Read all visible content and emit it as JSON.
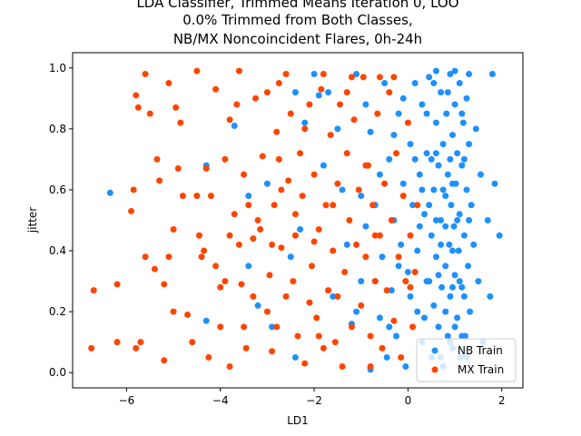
{
  "chart_data": {
    "type": "scatter",
    "title_lines": [
      "LDA Classifier, Trimmed Means Iteration 0, LOO",
      "0.0% Trimmed from Both Classes,",
      "NB/MX Noncoincident Flares, 0h-24h"
    ],
    "xlabel": "LD1",
    "ylabel": "jitter",
    "xlim": [
      -7.15,
      2.45
    ],
    "ylim": [
      -0.05,
      1.05
    ],
    "xticks": [
      -6,
      -4,
      -2,
      0,
      2
    ],
    "xtick_labels": [
      "−6",
      "−4",
      "−2",
      "0",
      "2"
    ],
    "yticks": [
      0.0,
      0.2,
      0.4,
      0.6,
      0.8,
      1.0
    ],
    "ytick_labels": [
      "0.0",
      "0.2",
      "0.4",
      "0.6",
      "0.8",
      "1.0"
    ],
    "grid": false,
    "legend_position": "lower-right",
    "series": [
      {
        "name": "NB Train",
        "color": "#1e90ff",
        "points": [
          [
            -6.35,
            0.59
          ],
          [
            -4.3,
            0.17
          ],
          [
            -4.3,
            0.68
          ],
          [
            -3.7,
            0.81
          ],
          [
            -3.4,
            0.58
          ],
          [
            -3.4,
            0.35
          ],
          [
            -3.2,
            0.22
          ],
          [
            -3.0,
            0.62
          ],
          [
            -2.9,
            0.15
          ],
          [
            -2.5,
            0.38
          ],
          [
            -2.4,
            0.92
          ],
          [
            -2.4,
            0.05
          ],
          [
            -2.3,
            0.47
          ],
          [
            -2.2,
            0.82
          ],
          [
            -2.0,
            0.98
          ],
          [
            -1.9,
            0.91
          ],
          [
            -1.8,
            0.68
          ],
          [
            -1.7,
            0.92
          ],
          [
            -1.6,
            0.25
          ],
          [
            -1.5,
            0.8
          ],
          [
            -1.4,
            0.6
          ],
          [
            -1.3,
            0.42
          ],
          [
            -1.2,
            0.16
          ],
          [
            -1.1,
            0.98
          ],
          [
            -1.0,
            0.3
          ],
          [
            -0.9,
            0.48
          ],
          [
            -0.8,
            0.79
          ],
          [
            -0.8,
            0.01
          ],
          [
            -0.7,
            0.55
          ],
          [
            -0.6,
            0.18
          ],
          [
            -0.55,
            0.38
          ],
          [
            -0.5,
            0.95
          ],
          [
            -0.45,
            0.05
          ],
          [
            -0.4,
            0.7
          ],
          [
            -0.35,
            0.27
          ],
          [
            -0.3,
            0.5
          ],
          [
            -0.25,
            0.12
          ],
          [
            -0.2,
            0.85
          ],
          [
            -0.15,
            0.42
          ],
          [
            -0.1,
            0.62
          ],
          [
            -0.05,
            0.02
          ],
          [
            0.0,
            0.33
          ],
          [
            0.05,
            0.75
          ],
          [
            0.1,
            0.55
          ],
          [
            0.15,
            0.95
          ],
          [
            0.2,
            0.2
          ],
          [
            0.2,
            0.4
          ],
          [
            0.25,
            0.65
          ],
          [
            0.3,
            0.88
          ],
          [
            0.3,
            0.1
          ],
          [
            0.35,
            0.52
          ],
          [
            0.4,
            0.3
          ],
          [
            0.4,
            0.72
          ],
          [
            0.45,
            0.97
          ],
          [
            0.5,
            0.45
          ],
          [
            0.5,
            0.05
          ],
          [
            0.55,
            0.6
          ],
          [
            0.55,
            0.22
          ],
          [
            0.6,
            0.82
          ],
          [
            0.6,
            0.38
          ],
          [
            0.65,
            0.68
          ],
          [
            0.65,
            0.15
          ],
          [
            0.7,
            0.92
          ],
          [
            0.7,
            0.5
          ],
          [
            0.72,
            0.28
          ],
          [
            0.75,
            0.75
          ],
          [
            0.75,
            0.02
          ],
          [
            0.8,
            0.58
          ],
          [
            0.8,
            0.35
          ],
          [
            0.82,
            0.85
          ],
          [
            0.85,
            0.12
          ],
          [
            0.85,
            0.65
          ],
          [
            0.88,
            0.42
          ],
          [
            0.9,
            0.98
          ],
          [
            0.9,
            0.25
          ],
          [
            0.92,
            0.55
          ],
          [
            0.95,
            0.78
          ],
          [
            0.95,
            0.08
          ],
          [
            0.98,
            0.48
          ],
          [
            1.0,
            0.32
          ],
          [
            1.0,
            0.88
          ],
          [
            1.02,
            0.62
          ],
          [
            1.05,
            0.18
          ],
          [
            1.05,
            0.72
          ],
          [
            1.08,
            0.4
          ],
          [
            1.1,
            0.95
          ],
          [
            1.1,
            0.52
          ],
          [
            1.12,
            0.05
          ],
          [
            1.15,
            0.68
          ],
          [
            1.15,
            0.28
          ],
          [
            1.18,
            0.82
          ],
          [
            1.2,
            0.45
          ],
          [
            1.22,
            0.12
          ],
          [
            1.25,
            0.6
          ],
          [
            1.25,
            0.9
          ],
          [
            1.28,
            0.35
          ],
          [
            1.3,
            0.75
          ],
          [
            1.32,
            0.2
          ],
          [
            1.35,
            0.55
          ],
          [
            1.4,
            0.42
          ],
          [
            1.45,
            0.8
          ],
          [
            1.5,
            0.3
          ],
          [
            1.55,
            0.65
          ],
          [
            1.6,
            0.1
          ],
          [
            1.7,
            0.5
          ],
          [
            1.75,
            0.25
          ],
          [
            1.8,
            0.98
          ],
          [
            1.85,
            0.62
          ],
          [
            1.95,
            0.45
          ],
          [
            0.3,
            0.6
          ],
          [
            0.45,
            0.3
          ],
          [
            0.6,
            0.5
          ],
          [
            0.8,
            0.2
          ],
          [
            0.95,
            0.4
          ],
          [
            1.1,
            0.3
          ],
          [
            0.7,
            0.42
          ],
          [
            0.9,
            0.7
          ],
          [
            1.3,
            0.5
          ],
          [
            0.4,
            0.85
          ],
          [
            0.55,
            0.95
          ],
          [
            0.75,
            0.6
          ],
          [
            1.0,
            0.15
          ],
          [
            1.2,
            0.25
          ],
          [
            0.65,
            0.32
          ],
          [
            0.85,
            0.92
          ],
          [
            1.15,
            0.85
          ],
          [
            0.5,
            0.7
          ],
          [
            0.35,
            0.18
          ],
          [
            0.95,
            0.62
          ],
          [
            1.05,
            0.5
          ],
          [
            0.25,
            0.48
          ],
          [
            0.15,
            0.7
          ],
          [
            0.05,
            0.25
          ],
          [
            -0.1,
            0.9
          ],
          [
            -0.2,
            0.35
          ],
          [
            -0.3,
            0.78
          ],
          [
            -0.4,
            0.15
          ],
          [
            -0.6,
            0.65
          ],
          [
            -0.7,
            0.3
          ],
          [
            -0.9,
            0.88
          ],
          [
            -1.0,
            0.58
          ],
          [
            -1.1,
            0.2
          ],
          [
            0.7,
            0.05
          ],
          [
            0.9,
            0.1
          ],
          [
            1.25,
            0.05
          ],
          [
            0.6,
            0.99
          ],
          [
            1.0,
            0.99
          ],
          [
            1.3,
            0.98
          ],
          [
            0.8,
            0.48
          ],
          [
            0.6,
            0.72
          ],
          [
            1.2,
            0.7
          ],
          [
            0.45,
            0.55
          ],
          [
            0.95,
            0.28
          ],
          [
            1.15,
            0.12
          ]
        ]
      },
      {
        "name": "MX Train",
        "color": "#ff4500",
        "points": [
          [
            -6.75,
            0.08
          ],
          [
            -6.7,
            0.27
          ],
          [
            -6.2,
            0.29
          ],
          [
            -6.2,
            0.1
          ],
          [
            -5.9,
            0.53
          ],
          [
            -5.85,
            0.6
          ],
          [
            -5.8,
            0.91
          ],
          [
            -5.75,
            0.87
          ],
          [
            -5.7,
            0.1
          ],
          [
            -5.6,
            0.38
          ],
          [
            -5.5,
            0.85
          ],
          [
            -5.4,
            0.34
          ],
          [
            -5.35,
            0.7
          ],
          [
            -5.3,
            0.63
          ],
          [
            -5.2,
            0.04
          ],
          [
            -5.1,
            0.95
          ],
          [
            -5.0,
            0.47
          ],
          [
            -5.0,
            0.2
          ],
          [
            -4.9,
            0.67
          ],
          [
            -4.85,
            0.82
          ],
          [
            -4.7,
            0.19
          ],
          [
            -4.6,
            0.1
          ],
          [
            -4.5,
            0.99
          ],
          [
            -4.45,
            0.45
          ],
          [
            -4.4,
            0.38
          ],
          [
            -4.3,
            0.67
          ],
          [
            -4.2,
            0.58
          ],
          [
            -4.1,
            0.93
          ],
          [
            -4.0,
            0.28
          ],
          [
            -3.9,
            0.3
          ],
          [
            -3.8,
            0.02
          ],
          [
            -3.8,
            0.83
          ],
          [
            -3.7,
            0.52
          ],
          [
            -3.6,
            0.99
          ],
          [
            -3.55,
            0.29
          ],
          [
            -3.5,
            0.15
          ],
          [
            -3.4,
            0.55
          ],
          [
            -3.3,
            0.44
          ],
          [
            -3.25,
            0.9
          ],
          [
            -3.2,
            0.5
          ],
          [
            -3.1,
            0.71
          ],
          [
            -3.0,
            0.2
          ],
          [
            -2.95,
            0.32
          ],
          [
            -2.9,
            0.07
          ],
          [
            -2.85,
            0.55
          ],
          [
            -2.8,
            0.79
          ],
          [
            -2.75,
            0.95
          ],
          [
            -2.7,
            0.41
          ],
          [
            -2.6,
            0.25
          ],
          [
            -2.55,
            0.63
          ],
          [
            -2.5,
            0.85
          ],
          [
            -2.45,
            0.3
          ],
          [
            -2.4,
            0.45
          ],
          [
            -2.35,
            0.12
          ],
          [
            -2.3,
            0.72
          ],
          [
            -2.25,
            0.58
          ],
          [
            -2.2,
            0.03
          ],
          [
            -2.1,
            0.88
          ],
          [
            -2.05,
            0.35
          ],
          [
            -2.0,
            0.65
          ],
          [
            -1.95,
            0.18
          ],
          [
            -1.9,
            0.47
          ],
          [
            -1.85,
            0.93
          ],
          [
            -1.8,
            0.08
          ],
          [
            -1.75,
            0.55
          ],
          [
            -1.7,
            0.27
          ],
          [
            -1.65,
            0.78
          ],
          [
            -1.6,
            0.4
          ],
          [
            -1.55,
            0.1
          ],
          [
            -1.5,
            0.62
          ],
          [
            -1.45,
            0.88
          ],
          [
            -1.4,
            0.02
          ],
          [
            -1.35,
            0.33
          ],
          [
            -1.3,
            0.72
          ],
          [
            -1.25,
            0.5
          ],
          [
            -1.2,
            0.15
          ],
          [
            -1.15,
            0.83
          ],
          [
            -1.1,
            0.42
          ],
          [
            -1.05,
            0.6
          ],
          [
            -1.0,
            0.22
          ],
          [
            -0.95,
            0.97
          ],
          [
            -0.9,
            0.38
          ],
          [
            -0.85,
            0.68
          ],
          [
            -0.8,
            0.12
          ],
          [
            -0.75,
            0.55
          ],
          [
            -0.7,
            0.3
          ],
          [
            -0.65,
            0.85
          ],
          [
            -0.6,
            0.45
          ],
          [
            -0.55,
            0.08
          ],
          [
            -0.5,
            0.62
          ],
          [
            -0.45,
            0.27
          ],
          [
            -0.4,
            0.92
          ],
          [
            -0.35,
            0.5
          ],
          [
            -0.3,
            0.17
          ],
          [
            -0.25,
            0.72
          ],
          [
            -0.2,
            0.38
          ],
          [
            -0.15,
            0.05
          ],
          [
            -0.1,
            0.58
          ],
          [
            -0.05,
            0.3
          ],
          [
            0.0,
            0.82
          ],
          [
            0.05,
            0.45
          ],
          [
            0.1,
            0.15
          ],
          [
            0.15,
            0.33
          ],
          [
            0.2,
            0.55
          ],
          [
            -2.9,
            0.42
          ],
          [
            -3.0,
            0.92
          ],
          [
            -2.7,
            0.6
          ],
          [
            -3.5,
            0.65
          ],
          [
            -4.0,
            0.15
          ],
          [
            -4.25,
            0.05
          ],
          [
            -5.2,
            0.29
          ],
          [
            -5.8,
            0.08
          ],
          [
            -3.9,
            0.7
          ],
          [
            -1.8,
            0.98
          ],
          [
            -2.6,
            0.98
          ],
          [
            -1.2,
            0.97
          ],
          [
            -0.8,
            0.02
          ],
          [
            -0.6,
            0.97
          ],
          [
            -1.5,
            0.25
          ],
          [
            -2.1,
            0.23
          ],
          [
            -2.8,
            0.15
          ],
          [
            -3.3,
            0.25
          ],
          [
            -3.6,
            0.42
          ],
          [
            -4.5,
            0.58
          ],
          [
            -5.1,
            0.38
          ],
          [
            -4.8,
            0.58
          ],
          [
            -1.9,
            0.12
          ],
          [
            -0.9,
            0.68
          ],
          [
            -1.3,
            0.92
          ],
          [
            -2.2,
            0.8
          ],
          [
            -3.15,
            0.47
          ],
          [
            -3.65,
            0.88
          ],
          [
            -2.4,
            0.52
          ],
          [
            -1.6,
            0.55
          ],
          [
            -0.7,
            0.45
          ],
          [
            -0.3,
            0.97
          ],
          [
            0.05,
            0.28
          ],
          [
            -3.8,
            0.45
          ],
          [
            -4.35,
            0.4
          ],
          [
            -5.6,
            0.98
          ],
          [
            -4.95,
            0.87
          ],
          [
            -4.1,
            0.35
          ],
          [
            -3.45,
            0.08
          ],
          [
            -2.75,
            0.7
          ],
          [
            -2.0,
            0.43
          ]
        ]
      }
    ]
  }
}
